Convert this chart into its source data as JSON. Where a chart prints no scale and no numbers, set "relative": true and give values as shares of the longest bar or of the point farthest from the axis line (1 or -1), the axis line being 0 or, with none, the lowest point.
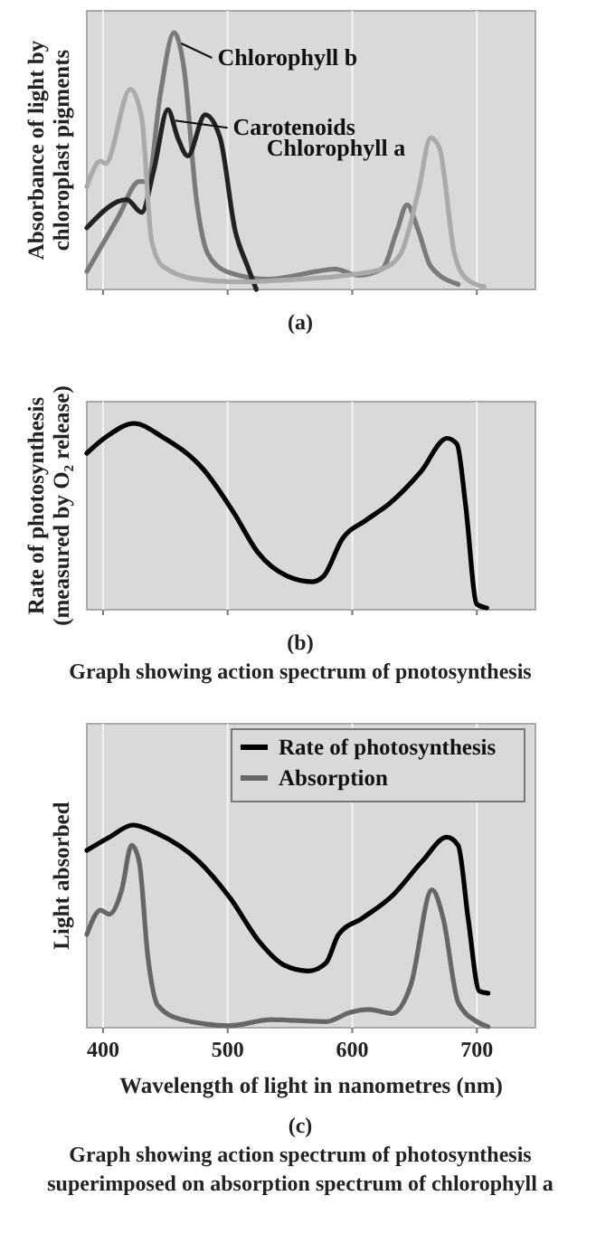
{
  "chart_data": [
    {
      "type": "line",
      "relative": true,
      "ylabel": "Absorbance of light by chloroplast pigments",
      "xlim": [
        387,
        747
      ],
      "xticks": [
        {
          "value": 400,
          "label": null
        },
        {
          "value": 500,
          "label": null
        },
        {
          "value": 600,
          "label": null
        },
        {
          "value": 700,
          "label": null
        }
      ],
      "tick_labels": false,
      "grid": "x",
      "legend": false,
      "annotations": [
        "(a)"
      ],
      "series": [
        {
          "name": "Chlorophyll b",
          "color": "#7a7a7a",
          "x": [
            387,
            412,
            429,
            436,
            446,
            457,
            465,
            475,
            484,
            499,
            533,
            571,
            586,
            605,
            624,
            636,
            644,
            653,
            663,
            685
          ],
          "values": [
            0.07,
            0.28,
            0.42,
            0.42,
            0.76,
            1.0,
            0.86,
            0.35,
            0.14,
            0.07,
            0.04,
            0.07,
            0.08,
            0.055,
            0.08,
            0.23,
            0.33,
            0.23,
            0.09,
            0.02
          ]
        },
        {
          "name": "Carotenoids",
          "color": "#222222",
          "x": [
            387,
            419,
            431,
            441,
            452,
            460,
            468,
            482,
            494,
            506,
            516,
            523
          ],
          "values": [
            0.24,
            0.35,
            0.3,
            0.47,
            0.7,
            0.59,
            0.52,
            0.68,
            0.59,
            0.23,
            0.09,
            0
          ]
        },
        {
          "name": "Chlorophyll a",
          "color": "#aaaaaa",
          "x": [
            387,
            398,
            402,
            422,
            431,
            439,
            448,
            475,
            509,
            557,
            595,
            624,
            639,
            653,
            663,
            670,
            682,
            692,
            706
          ],
          "values": [
            0.4,
            0.5,
            0.49,
            0.78,
            0.67,
            0.19,
            0.09,
            0.04,
            0.03,
            0.04,
            0.055,
            0.08,
            0.14,
            0.38,
            0.59,
            0.55,
            0.14,
            0.04,
            0.01
          ]
        }
      ]
    },
    {
      "type": "line",
      "relative": true,
      "ylabel": "Rate of photosynthesis (measured by O₂ release)",
      "xlim": [
        387,
        747
      ],
      "xticks": [
        {
          "value": 400,
          "label": null
        },
        {
          "value": 500,
          "label": null
        },
        {
          "value": 600,
          "label": null
        },
        {
          "value": 700,
          "label": null
        }
      ],
      "tick_labels": false,
      "grid": "x",
      "legend": false,
      "annotations": [
        "(b)",
        "Graph showing action spectrum of pnotosynthesis"
      ],
      "series": [
        {
          "color": "#000000",
          "x": [
            387,
            403,
            425,
            447,
            481,
            505,
            524,
            548,
            568,
            577,
            592,
            611,
            630,
            655,
            676,
            684,
            691,
            700,
            708
          ],
          "values": [
            0.84,
            0.93,
            1.0,
            0.93,
            0.75,
            0.52,
            0.31,
            0.18,
            0.15,
            0.18,
            0.38,
            0.48,
            0.57,
            0.74,
            0.92,
            0.89,
            0.56,
            0.03,
            0.01
          ]
        }
      ]
    },
    {
      "type": "line",
      "relative": true,
      "ylabel": "Light absorbed",
      "xlabel": "Wavelength of light in nanometres (nm)",
      "xlim": [
        387,
        747
      ],
      "xticks": [
        400,
        500,
        600,
        700
      ],
      "tick_labels": "x",
      "grid": "x",
      "legend": "top right",
      "annotations": [
        "(c)",
        "Graph showing action spectrum of photosynthesis superimposed on absorption spectrum of chlorophyll a"
      ],
      "series": [
        {
          "name": "Rate of photosynthesis",
          "color": "#000000",
          "x": [
            387,
            405,
            424,
            443,
            477,
            502,
            526,
            545,
            565,
            579,
            589,
            608,
            632,
            656,
            676,
            685,
            693,
            702,
            709
          ],
          "values": [
            0.875,
            0.94,
            1.0,
            0.96,
            0.82,
            0.64,
            0.42,
            0.31,
            0.28,
            0.32,
            0.46,
            0.54,
            0.65,
            0.82,
            0.94,
            0.9,
            0.54,
            0.18,
            0.17
          ]
        },
        {
          "name": "Absorption",
          "color": "#666666",
          "x": [
            387,
            398,
            405,
            415,
            423,
            429,
            436,
            444,
            463,
            502,
            535,
            579,
            598,
            613,
            632,
            647,
            664,
            673,
            685,
            700,
            709
          ],
          "values": [
            0.46,
            0.58,
            0.56,
            0.68,
            0.9,
            0.82,
            0.35,
            0.11,
            0.04,
            0.01,
            0.04,
            0.03,
            0.075,
            0.09,
            0.07,
            0.21,
            0.68,
            0.54,
            0.125,
            0.03,
            0.005
          ]
        }
      ]
    }
  ]
}
